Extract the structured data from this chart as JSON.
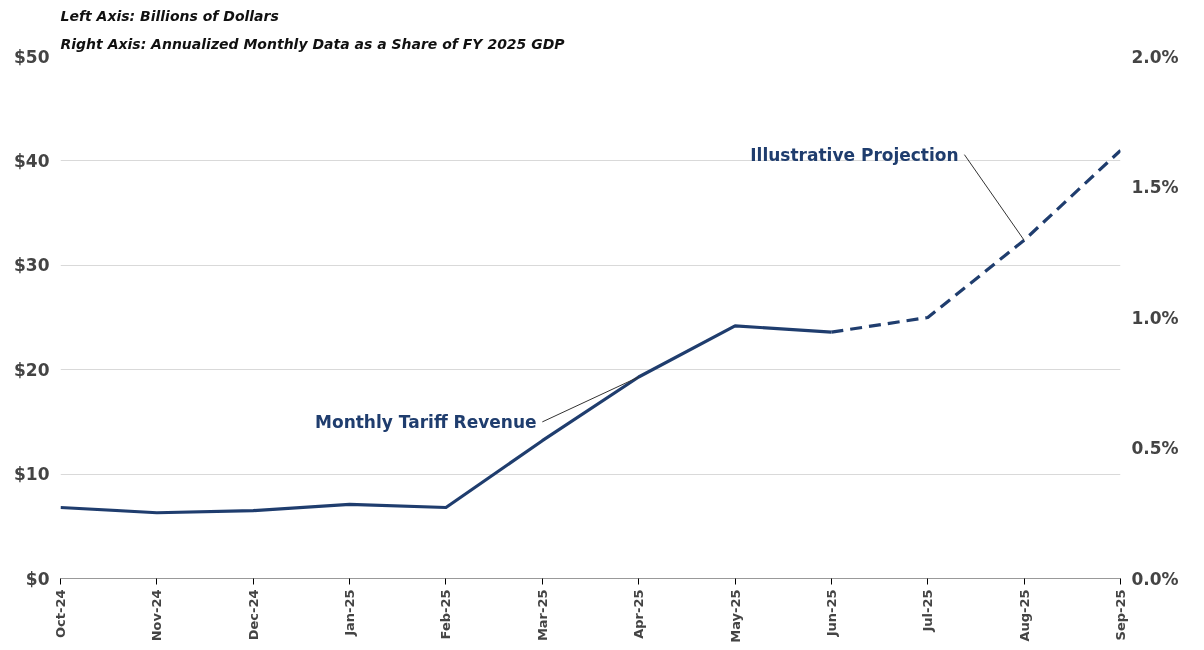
{
  "chart_data": {
    "type": "line",
    "title": "Left Axis: Billions of Dollars",
    "subtitle": "Right Axis: Annualized Monthly Data as a Share of FY 2025 GDP",
    "categories": [
      "Oct-24",
      "Nov-24",
      "Dec-24",
      "Jan-25",
      "Feb-25",
      "Mar-25",
      "Apr-25",
      "May-25",
      "Jun-25",
      "Jul-25",
      "Aug-25",
      "Sep-25"
    ],
    "series": [
      {
        "color": "#1f3d6e",
        "line_style": "solid",
        "values": [
          6.8,
          6.3,
          6.5,
          7.1,
          6.8,
          13.2,
          19.3,
          24.2,
          23.6,
          null,
          null,
          null
        ]
      },
      {
        "color": "#1f3d6e",
        "line_style": "dashed",
        "values": [
          null,
          null,
          null,
          null,
          null,
          null,
          null,
          null,
          23.6,
          25.0,
          32.4,
          41.0
        ]
      }
    ],
    "ylim": [
      0,
      50
    ],
    "yticks": [
      {
        "value": 0,
        "label": "$0"
      },
      {
        "value": 10,
        "label": "$10"
      },
      {
        "value": 20,
        "label": "$20"
      },
      {
        "value": 30,
        "label": "$30"
      },
      {
        "value": 40,
        "label": "$40"
      },
      {
        "value": 50,
        "label": "$50"
      }
    ],
    "y2lim": [
      0,
      2.0
    ],
    "y2ticks": [
      {
        "value": 0,
        "label": "0.0%"
      },
      {
        "value": 0.5,
        "label": "0.5%"
      },
      {
        "value": 1.0,
        "label": "1.0%"
      },
      {
        "value": 1.5,
        "label": "1.5%"
      },
      {
        "value": 2.0,
        "label": "2.0%"
      }
    ],
    "annotations": [
      {
        "text": "Monthly Tariff Revenue",
        "x": "Apr-25",
        "y": 19.3
      },
      {
        "text": "Illustrative Projection",
        "x": "Aug-25",
        "y": 32.4
      }
    ],
    "grid": "y"
  }
}
